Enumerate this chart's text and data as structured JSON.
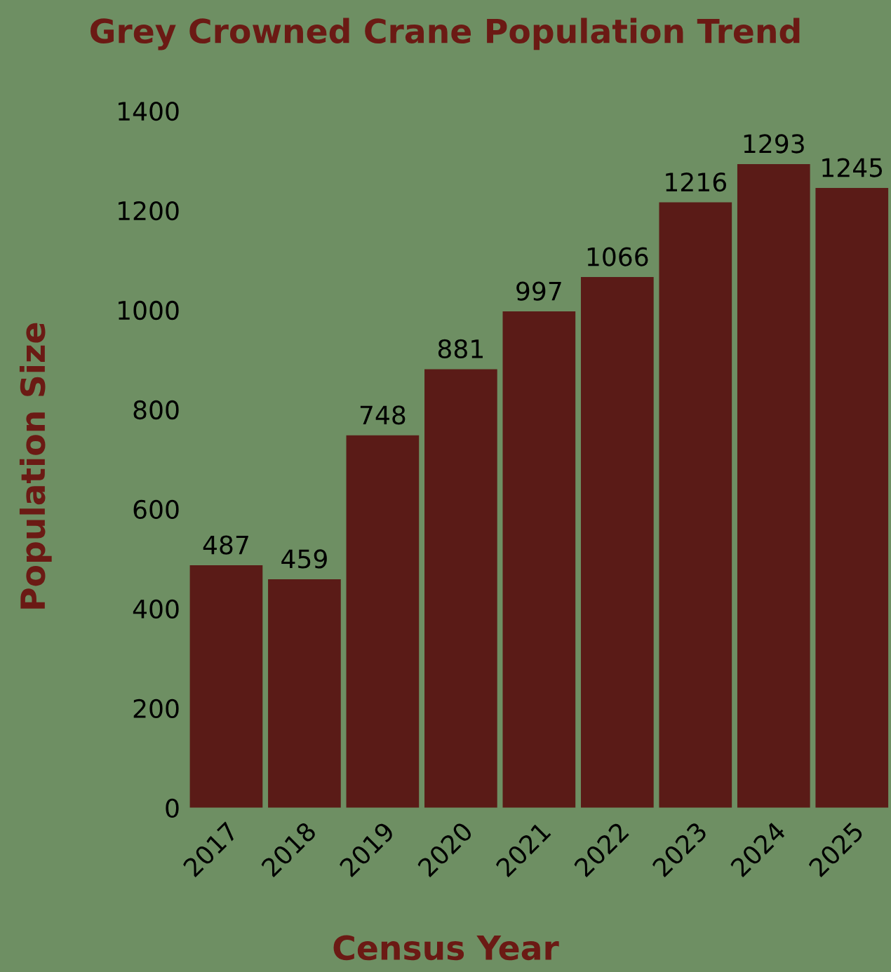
{
  "chart_data": {
    "type": "bar",
    "title": "Grey Crowned Crane Population Trend",
    "xlabel": "Census Year",
    "ylabel": "Population Size",
    "categories": [
      "2017",
      "2018",
      "2019",
      "2020",
      "2021",
      "2022",
      "2023",
      "2024",
      "2025"
    ],
    "values": [
      487,
      459,
      748,
      881,
      997,
      1066,
      1216,
      1293,
      1245
    ],
    "color": "#5a1b17",
    "ylim": [
      0,
      1400
    ],
    "yticks": [
      0,
      200,
      400,
      600,
      800,
      1000,
      1200,
      1400
    ],
    "data_labels": true,
    "grid": false,
    "legend": false
  }
}
